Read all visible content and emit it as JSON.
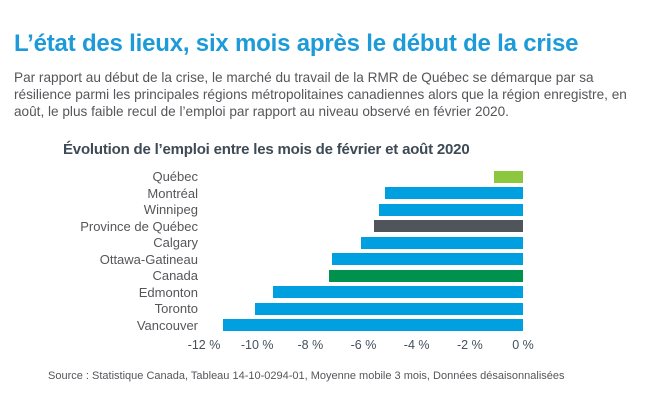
{
  "page": {
    "title": "L’état des lieux, six mois après le début de la crise",
    "intro": "Par rapport au début de la crise, le marché du travail de la RMR de Québec se démarque par sa résilience parmi les principales régions métropolitaines canadiennes alors que la région enregistre, en août, le plus faible recul de l’emploi par rapport au niveau observé en février 2020.",
    "source": "Source : Statistique Canada, Tableau 14-10-0294-01, Moyenne mobile 3 mois, Données désaisonnalisées"
  },
  "chart_data": {
    "type": "bar",
    "orientation": "horizontal",
    "title": "Évolution de l’emploi entre les mois de février et août 2020",
    "categories": [
      "Québec",
      "Montréal",
      "Winnipeg",
      "Province de Québec",
      "Calgary",
      "Ottawa-Gatineau",
      "Canada",
      "Edmonton",
      "Toronto",
      "Vancouver"
    ],
    "values": [
      -1.1,
      -5.2,
      -5.4,
      -5.6,
      -6.1,
      -7.2,
      -7.3,
      -9.4,
      -10.1,
      -11.3
    ],
    "unit": "%",
    "xlim": [
      -12,
      0
    ],
    "x_ticks": [
      "-12 %",
      "-10 %",
      "-8 %",
      "-6 %",
      "-4 %",
      "-2 %",
      "0 %"
    ],
    "grid": false,
    "legend": false,
    "value_labels": false,
    "bar_colors": [
      "#8dc63f",
      "#009fe0",
      "#009fe0",
      "#50555b",
      "#009fe0",
      "#009fe0",
      "#00924c",
      "#009fe0",
      "#009fe0",
      "#009fe0"
    ]
  },
  "colors": {
    "heading": "#1c9bd8",
    "body_text": "#55565a",
    "chart_title": "#3e4a55",
    "axis_label": "#44505c",
    "bar_blue": "#009fe0",
    "bar_light_green": "#8dc63f",
    "bar_dark_green": "#00924c",
    "bar_dark_gray": "#50555b"
  }
}
